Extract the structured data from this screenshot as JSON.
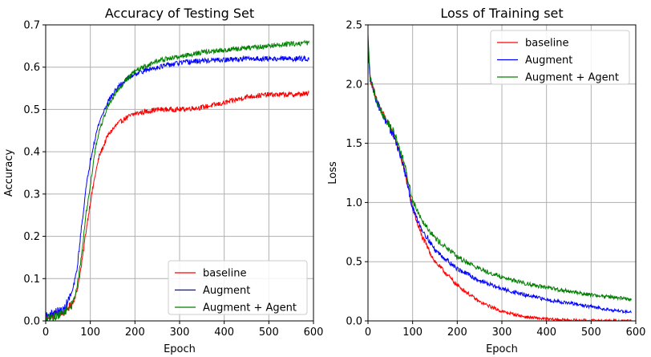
{
  "chart_data": [
    {
      "type": "line",
      "title": "Accuracy of Testing Set",
      "xlabel": "Epoch",
      "ylabel": "Accuracy",
      "xlim": [
        0,
        600
      ],
      "ylim": [
        0,
        0.7
      ],
      "xticks": [
        0,
        100,
        200,
        300,
        400,
        500,
        600
      ],
      "yticks": [
        0.0,
        0.1,
        0.2,
        0.3,
        0.4,
        0.5,
        0.6,
        0.7
      ],
      "ytick_labels": [
        "0.0",
        "0.1",
        "0.2",
        "0.3",
        "0.4",
        "0.5",
        "0.6",
        "0.7"
      ],
      "grid": true,
      "legend_position": "lower-right",
      "series": [
        {
          "name": "baseline",
          "color": "#ff0000",
          "x": [
            0,
            20,
            40,
            60,
            70,
            80,
            90,
            100,
            110,
            120,
            140,
            160,
            180,
            200,
            250,
            300,
            350,
            400,
            450,
            500,
            550,
            590
          ],
          "y": [
            0.01,
            0.015,
            0.02,
            0.04,
            0.07,
            0.13,
            0.21,
            0.28,
            0.34,
            0.39,
            0.44,
            0.465,
            0.48,
            0.49,
            0.5,
            0.5,
            0.505,
            0.515,
            0.53,
            0.535,
            0.535,
            0.537
          ]
        },
        {
          "name": "Augment",
          "color": "#0000ff",
          "x": [
            0,
            20,
            40,
            60,
            70,
            80,
            90,
            100,
            110,
            120,
            140,
            160,
            180,
            200,
            250,
            300,
            350,
            400,
            450,
            500,
            550,
            590
          ],
          "y": [
            0.01,
            0.02,
            0.025,
            0.07,
            0.12,
            0.22,
            0.31,
            0.38,
            0.43,
            0.47,
            0.52,
            0.55,
            0.57,
            0.585,
            0.6,
            0.61,
            0.615,
            0.617,
            0.62,
            0.62,
            0.62,
            0.62
          ]
        },
        {
          "name": "Augment + Agent",
          "color": "#008000",
          "x": [
            0,
            20,
            40,
            60,
            70,
            80,
            90,
            100,
            110,
            120,
            140,
            160,
            180,
            200,
            250,
            300,
            350,
            400,
            450,
            500,
            550,
            590
          ],
          "y": [
            0.005,
            0.01,
            0.02,
            0.04,
            0.08,
            0.15,
            0.25,
            0.32,
            0.4,
            0.45,
            0.51,
            0.545,
            0.57,
            0.59,
            0.615,
            0.625,
            0.635,
            0.64,
            0.645,
            0.65,
            0.655,
            0.658
          ]
        }
      ]
    },
    {
      "type": "line",
      "title": "Loss of Training set",
      "xlabel": "Epoch",
      "ylabel": "Loss",
      "xlim": [
        0,
        600
      ],
      "ylim": [
        0,
        2.5
      ],
      "xticks": [
        0,
        100,
        200,
        300,
        400,
        500,
        600
      ],
      "yticks": [
        0.0,
        0.5,
        1.0,
        1.5,
        2.0,
        2.5
      ],
      "ytick_labels": [
        "0.0",
        "0.5",
        "1.0",
        "1.5",
        "2.0",
        "2.5"
      ],
      "grid": true,
      "legend_position": "top-right",
      "series": [
        {
          "name": "baseline",
          "color": "#ff0000",
          "x": [
            0,
            5,
            20,
            40,
            60,
            80,
            100,
            120,
            150,
            200,
            250,
            300,
            350,
            400,
            450,
            500,
            550,
            590
          ],
          "y": [
            2.3,
            2.05,
            1.85,
            1.7,
            1.55,
            1.3,
            0.95,
            0.72,
            0.5,
            0.3,
            0.16,
            0.08,
            0.035,
            0.015,
            0.007,
            0.003,
            0.002,
            0.001
          ]
        },
        {
          "name": "Augment",
          "color": "#0000ff",
          "x": [
            0,
            5,
            20,
            40,
            60,
            80,
            100,
            120,
            150,
            200,
            250,
            300,
            350,
            400,
            450,
            500,
            550,
            590
          ],
          "y": [
            2.35,
            2.05,
            1.85,
            1.68,
            1.55,
            1.3,
            0.95,
            0.78,
            0.6,
            0.44,
            0.34,
            0.27,
            0.22,
            0.18,
            0.15,
            0.12,
            0.09,
            0.075
          ]
        },
        {
          "name": "Augment + Agent",
          "color": "#008000",
          "x": [
            0,
            5,
            20,
            40,
            60,
            80,
            100,
            120,
            150,
            200,
            250,
            300,
            350,
            400,
            450,
            500,
            550,
            590
          ],
          "y": [
            2.4,
            2.05,
            1.85,
            1.7,
            1.58,
            1.35,
            1.02,
            0.86,
            0.7,
            0.54,
            0.44,
            0.37,
            0.32,
            0.28,
            0.25,
            0.22,
            0.2,
            0.18
          ]
        }
      ]
    }
  ]
}
